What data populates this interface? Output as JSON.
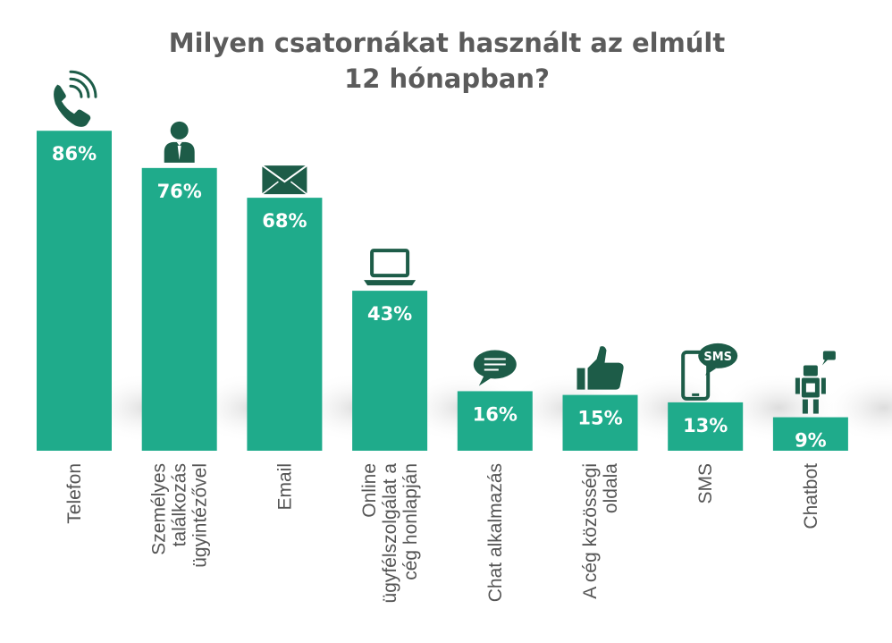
{
  "chart_data": {
    "type": "bar",
    "title_lines": [
      "Milyen csatornákat használt az elmúlt",
      "12 hónapban?"
    ],
    "categories": [
      [
        "Telefon"
      ],
      [
        "Személyes",
        "találkozás",
        "ügyintézővel"
      ],
      [
        "Email"
      ],
      [
        "Online",
        "ügyfélszolgálat a",
        "cég honlapján"
      ],
      [
        "Chat alkalmazás"
      ],
      [
        "A cég közösségi",
        "oldala"
      ],
      [
        "SMS"
      ],
      [
        "Chatbot"
      ]
    ],
    "values": [
      86,
      76,
      68,
      43,
      16,
      15,
      13,
      9
    ],
    "value_labels": [
      "86%",
      "76%",
      "68%",
      "43%",
      "16%",
      "15%",
      "13%",
      "9%"
    ],
    "icons": [
      "phone-icon",
      "person-icon",
      "envelope-icon",
      "laptop-icon",
      "chat-bubble-icon",
      "thumbs-up-icon",
      "sms-phone-icon",
      "robot-icon"
    ],
    "sms_icon_text": "SMS",
    "ylim": [
      0,
      100
    ],
    "grid": false,
    "legend": false,
    "colors": {
      "bar": "#1fab8b",
      "icon": "#1d5c48",
      "title": "#5b5b5b",
      "label": "#555555",
      "shadow": "#e2e2e2"
    }
  }
}
